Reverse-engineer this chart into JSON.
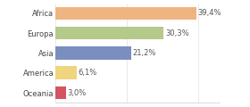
{
  "categories": [
    "Africa",
    "Europa",
    "Asia",
    "America",
    "Oceania"
  ],
  "values": [
    39.4,
    30.3,
    21.2,
    6.1,
    3.0
  ],
  "labels": [
    "39,4%",
    "30,3%",
    "21,2%",
    "6,1%",
    "3,0%"
  ],
  "bar_colors": [
    "#f0b482",
    "#b5c98a",
    "#7a8fbf",
    "#f0d580",
    "#d45560"
  ],
  "background_color": "#ffffff",
  "xlim": [
    0,
    46
  ],
  "label_fontsize": 6.0,
  "tick_fontsize": 6.0,
  "bar_height": 0.65
}
